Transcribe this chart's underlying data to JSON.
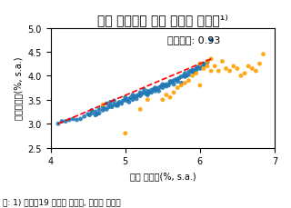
{
  "title": "확장 실업률과 공식 실업률 산점도¹⁾",
  "xlabel": "확장 실업률(%, s.a.)",
  "ylabel": "공식실업률(%, s.a.)",
  "xlim": [
    4.0,
    7.0
  ],
  "ylim": [
    2.5,
    5.0
  ],
  "xticks": [
    4.0,
    5.0,
    6.0,
    7.0
  ],
  "yticks": [
    2.5,
    3.0,
    3.5,
    4.0,
    4.5,
    5.0
  ],
  "annotation": "상관계수: 0.93",
  "footnote": "주: 1) 코로나19 이전은 파란색, 이후는 노란색",
  "blue_dots": [
    [
      4.1,
      3.0
    ],
    [
      4.15,
      3.05
    ],
    [
      4.2,
      3.05
    ],
    [
      4.25,
      3.08
    ],
    [
      4.3,
      3.1
    ],
    [
      4.35,
      3.08
    ],
    [
      4.4,
      3.1
    ],
    [
      4.45,
      3.15
    ],
    [
      4.5,
      3.2
    ],
    [
      4.52,
      3.18
    ],
    [
      4.55,
      3.22
    ],
    [
      4.6,
      3.25
    ],
    [
      4.62,
      3.2
    ],
    [
      4.65,
      3.3
    ],
    [
      4.7,
      3.28
    ],
    [
      4.72,
      3.32
    ],
    [
      4.75,
      3.3
    ],
    [
      4.78,
      3.35
    ],
    [
      4.8,
      3.38
    ],
    [
      4.82,
      3.35
    ],
    [
      4.85,
      3.4
    ],
    [
      4.88,
      3.38
    ],
    [
      4.9,
      3.42
    ],
    [
      4.92,
      3.45
    ],
    [
      4.95,
      3.42
    ],
    [
      4.97,
      3.48
    ],
    [
      5.0,
      3.5
    ],
    [
      5.02,
      3.48
    ],
    [
      5.05,
      3.52
    ],
    [
      5.08,
      3.55
    ],
    [
      5.1,
      3.5
    ],
    [
      5.12,
      3.55
    ],
    [
      5.15,
      3.58
    ],
    [
      5.18,
      3.6
    ],
    [
      5.2,
      3.58
    ],
    [
      5.22,
      3.62
    ],
    [
      5.25,
      3.65
    ],
    [
      5.28,
      3.62
    ],
    [
      5.3,
      3.68
    ],
    [
      5.32,
      3.65
    ],
    [
      5.35,
      3.7
    ],
    [
      5.38,
      3.72
    ],
    [
      5.4,
      3.68
    ],
    [
      5.42,
      3.72
    ],
    [
      5.45,
      3.75
    ],
    [
      5.48,
      3.78
    ],
    [
      5.5,
      3.75
    ],
    [
      5.52,
      3.8
    ],
    [
      5.55,
      3.82
    ],
    [
      5.58,
      3.8
    ],
    [
      5.6,
      3.85
    ],
    [
      5.62,
      3.88
    ],
    [
      5.65,
      3.9
    ],
    [
      5.68,
      3.92
    ],
    [
      5.7,
      3.88
    ],
    [
      5.72,
      3.95
    ],
    [
      5.75,
      3.98
    ],
    [
      5.78,
      4.0
    ],
    [
      5.8,
      4.05
    ],
    [
      5.82,
      4.0
    ],
    [
      5.85,
      4.08
    ],
    [
      5.88,
      4.1
    ],
    [
      5.9,
      4.12
    ],
    [
      5.92,
      4.08
    ],
    [
      5.95,
      4.15
    ],
    [
      5.97,
      4.18
    ],
    [
      6.0,
      4.2
    ],
    [
      6.05,
      4.22
    ],
    [
      6.1,
      4.28
    ],
    [
      6.15,
      4.75
    ],
    [
      4.55,
      3.28
    ],
    [
      4.6,
      3.18
    ],
    [
      4.65,
      3.22
    ],
    [
      4.7,
      3.35
    ],
    [
      4.75,
      3.42
    ],
    [
      4.8,
      3.45
    ],
    [
      4.85,
      3.48
    ],
    [
      4.9,
      3.38
    ],
    [
      5.0,
      3.55
    ],
    [
      5.05,
      3.45
    ],
    [
      5.1,
      3.6
    ],
    [
      5.15,
      3.52
    ],
    [
      5.2,
      3.65
    ],
    [
      5.25,
      3.72
    ],
    [
      5.3,
      3.6
    ],
    [
      5.35,
      3.65
    ],
    [
      5.4,
      3.75
    ],
    [
      5.45,
      3.68
    ],
    [
      5.5,
      3.82
    ],
    [
      5.55,
      3.78
    ],
    [
      5.6,
      3.88
    ],
    [
      5.65,
      3.82
    ],
    [
      5.7,
      3.92
    ],
    [
      5.75,
      3.85
    ],
    [
      5.8,
      3.98
    ],
    [
      5.85,
      4.02
    ],
    [
      5.9,
      4.08
    ],
    [
      5.95,
      4.12
    ],
    [
      6.0,
      4.15
    ],
    [
      6.05,
      4.25
    ],
    [
      6.1,
      4.3
    ]
  ],
  "orange_dots": [
    [
      4.7,
      3.4
    ],
    [
      5.0,
      2.8
    ],
    [
      5.2,
      3.3
    ],
    [
      5.3,
      3.5
    ],
    [
      5.5,
      3.5
    ],
    [
      5.55,
      3.6
    ],
    [
      5.6,
      3.55
    ],
    [
      5.65,
      3.65
    ],
    [
      5.7,
      3.75
    ],
    [
      5.75,
      3.8
    ],
    [
      5.8,
      3.85
    ],
    [
      5.85,
      3.9
    ],
    [
      5.9,
      4.0
    ],
    [
      5.95,
      4.05
    ],
    [
      6.0,
      3.8
    ],
    [
      6.0,
      4.25
    ],
    [
      6.05,
      4.15
    ],
    [
      6.1,
      4.2
    ],
    [
      6.1,
      4.3
    ],
    [
      6.15,
      4.1
    ],
    [
      6.15,
      4.35
    ],
    [
      6.2,
      4.2
    ],
    [
      6.25,
      4.1
    ],
    [
      6.3,
      4.3
    ],
    [
      6.35,
      4.15
    ],
    [
      6.4,
      4.1
    ],
    [
      6.45,
      4.2
    ],
    [
      6.5,
      4.15
    ],
    [
      6.55,
      4.0
    ],
    [
      6.6,
      4.05
    ],
    [
      6.65,
      4.2
    ],
    [
      6.7,
      4.15
    ],
    [
      6.75,
      4.1
    ],
    [
      6.8,
      4.25
    ],
    [
      6.85,
      4.45
    ]
  ],
  "trendline": [
    [
      4.1,
      3.0
    ],
    [
      6.15,
      4.35
    ]
  ],
  "blue_color": "#1f77b4",
  "orange_color": "#ff9f00",
  "trend_color": "red",
  "dot_size": 12,
  "title_fontsize": 10,
  "axis_fontsize": 7,
  "tick_fontsize": 7,
  "annot_fontsize": 8,
  "footnote_fontsize": 6.5
}
